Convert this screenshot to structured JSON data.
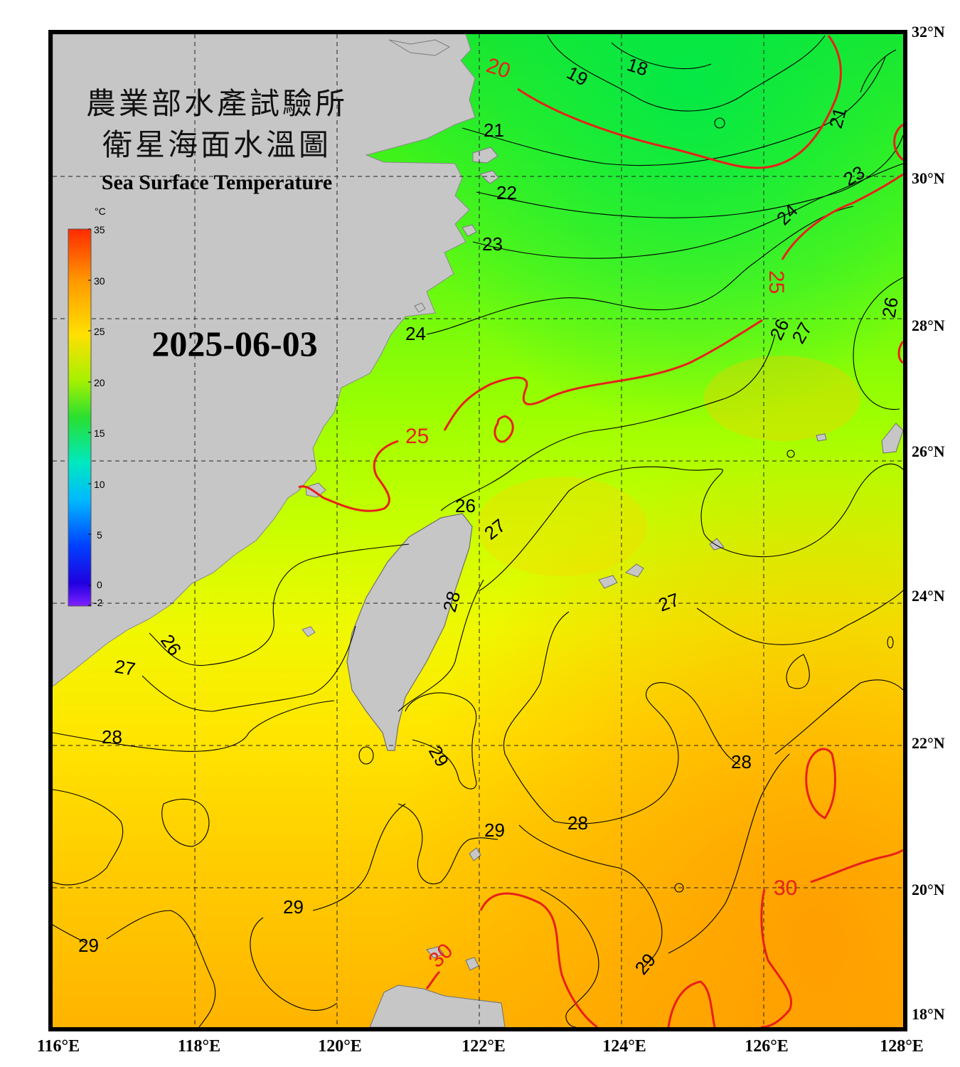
{
  "title": {
    "org": "農業部水產試驗所",
    "name_zh": "衛星海面水溫圖",
    "name_en": "Sea Surface Temperature"
  },
  "date": "2025-06-03",
  "colorbar": {
    "unit": "°C",
    "ticks": [
      "35",
      "30",
      "25",
      "20",
      "15",
      "10",
      "5",
      "0",
      "-2"
    ]
  },
  "axes": {
    "lat_labels": [
      "32°N",
      "30°N",
      "28°N",
      "26°N",
      "24°N",
      "22°N",
      "20°N",
      "18°N"
    ],
    "lon_labels": [
      "116°E",
      "118°E",
      "120°E",
      "122°E",
      "124°E",
      "126°E",
      "128°E"
    ]
  },
  "contour_labels": {
    "black": [
      "18",
      "19",
      "21",
      "21",
      "22",
      "23",
      "23",
      "24",
      "24",
      "26",
      "26",
      "26",
      "26",
      "27",
      "27",
      "27",
      "27",
      "28",
      "28",
      "28",
      "28",
      "29",
      "29",
      "29",
      "29",
      "29"
    ],
    "red": [
      "20",
      "25",
      "25",
      "30",
      "30"
    ]
  },
  "colors": {
    "frame": "#000000",
    "land": "#c6c6c6",
    "isotherm_red": "#e8201a",
    "isotherm_black": "#000000"
  }
}
